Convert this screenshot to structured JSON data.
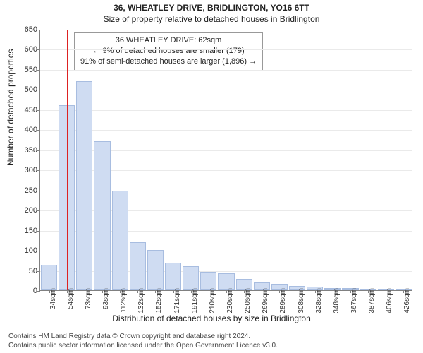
{
  "title": "36, WHEATLEY DRIVE, BRIDLINGTON, YO16 6TT",
  "subtitle": "Size of property relative to detached houses in Bridlington",
  "ylabel": "Number of detached properties",
  "xlabel": "Distribution of detached houses by size in Bridlington",
  "chart": {
    "type": "histogram",
    "bar_fill": "#cfdcf2",
    "bar_border": "#a8bde0",
    "grid_color": "#eaeaea",
    "axis_color": "#808080",
    "background_color": "#ffffff",
    "reference_line_color": "#d22",
    "reference_line_x_index": 1.5,
    "ylim": [
      0,
      650
    ],
    "ytick_step": 50,
    "x_labels": [
      "34sqm",
      "54sqm",
      "73sqm",
      "93sqm",
      "112sqm",
      "132sqm",
      "152sqm",
      "171sqm",
      "191sqm",
      "210sqm",
      "230sqm",
      "250sqm",
      "269sqm",
      "289sqm",
      "308sqm",
      "328sqm",
      "348sqm",
      "367sqm",
      "387sqm",
      "406sqm",
      "426sqm"
    ],
    "values": [
      64,
      460,
      520,
      370,
      248,
      120,
      100,
      68,
      60,
      45,
      42,
      28,
      20,
      15,
      10,
      8,
      6,
      5,
      4,
      3,
      3
    ]
  },
  "annotation": {
    "line1": "36 WHEATLEY DRIVE: 62sqm",
    "line2": "← 9% of detached houses are smaller (179)",
    "line3": "91% of semi-detached houses are larger (1,896) →"
  },
  "footer": {
    "line1": "Contains HM Land Registry data © Crown copyright and database right 2024.",
    "line2": "Contains public sector information licensed under the Open Government Licence v3.0."
  }
}
